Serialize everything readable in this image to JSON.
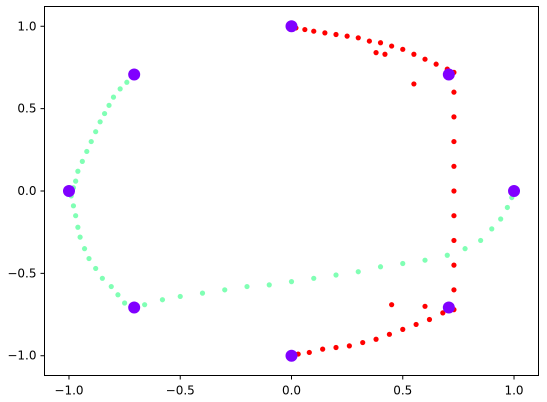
{
  "chart_data": {
    "type": "scatter",
    "title": "",
    "xlabel": "",
    "ylabel": "",
    "xlim": [
      -1.11,
      1.11
    ],
    "ylim": [
      -1.12,
      1.12
    ],
    "xticks": [
      {
        "value": -1.0,
        "label": "−1.0"
      },
      {
        "value": -0.5,
        "label": "−0.5"
      },
      {
        "value": 0.0,
        "label": "0.0"
      },
      {
        "value": 0.5,
        "label": "0.5"
      },
      {
        "value": 1.0,
        "label": "1.0"
      }
    ],
    "yticks": [
      {
        "value": 1.0,
        "label": "1.0"
      },
      {
        "value": 0.5,
        "label": "0.5"
      },
      {
        "value": 0.0,
        "label": "0.0"
      },
      {
        "value": -0.5,
        "label": "−0.5"
      },
      {
        "value": -1.0,
        "label": "−1.0"
      }
    ],
    "grid": false,
    "legend": "none",
    "series": [
      {
        "color": "#80ffb4",
        "points": [
          [
            -0.71,
            0.7
          ],
          [
            -0.74,
            0.66
          ],
          [
            -0.77,
            0.62
          ],
          [
            -0.8,
            0.57
          ],
          [
            -0.82,
            0.52
          ],
          [
            -0.84,
            0.47
          ],
          [
            -0.86,
            0.42
          ],
          [
            -0.88,
            0.36
          ],
          [
            -0.9,
            0.3
          ],
          [
            -0.92,
            0.24
          ],
          [
            -0.94,
            0.18
          ],
          [
            -0.96,
            0.12
          ],
          [
            -0.97,
            0.06
          ],
          [
            -0.98,
            0.02
          ],
          [
            -0.99,
            -0.03
          ],
          [
            -0.98,
            -0.09
          ],
          [
            -0.97,
            -0.15
          ],
          [
            -0.96,
            -0.22
          ],
          [
            -0.95,
            -0.28
          ],
          [
            -0.93,
            -0.35
          ],
          [
            -0.91,
            -0.41
          ],
          [
            -0.88,
            -0.47
          ],
          [
            -0.85,
            -0.53
          ],
          [
            -0.81,
            -0.58
          ],
          [
            -0.78,
            -0.63
          ],
          [
            -0.75,
            -0.68
          ],
          [
            -0.72,
            -0.71
          ],
          [
            -0.66,
            -0.69
          ],
          [
            -0.58,
            -0.66
          ],
          [
            -0.5,
            -0.64
          ],
          [
            -0.4,
            -0.62
          ],
          [
            -0.3,
            -0.6
          ],
          [
            -0.2,
            -0.58
          ],
          [
            -0.1,
            -0.57
          ],
          [
            0.0,
            -0.55
          ],
          [
            0.1,
            -0.53
          ],
          [
            0.2,
            -0.51
          ],
          [
            0.3,
            -0.49
          ],
          [
            0.4,
            -0.46
          ],
          [
            0.5,
            -0.44
          ],
          [
            0.6,
            -0.42
          ],
          [
            0.7,
            -0.39
          ],
          [
            0.78,
            -0.35
          ],
          [
            0.85,
            -0.3
          ],
          [
            0.9,
            -0.23
          ],
          [
            0.94,
            -0.17
          ],
          [
            0.97,
            -0.1
          ],
          [
            0.99,
            -0.04
          ],
          [
            1.0,
            0.0
          ]
        ]
      },
      {
        "color": "#ff0000",
        "points": [
          [
            -0.01,
            1.0
          ],
          [
            0.02,
            0.99
          ],
          [
            0.06,
            0.98
          ],
          [
            0.1,
            0.97
          ],
          [
            0.15,
            0.96
          ],
          [
            0.2,
            0.95
          ],
          [
            0.25,
            0.94
          ],
          [
            0.3,
            0.93
          ],
          [
            0.35,
            0.91
          ],
          [
            0.4,
            0.9
          ],
          [
            0.45,
            0.88
          ],
          [
            0.5,
            0.86
          ],
          [
            0.55,
            0.83
          ],
          [
            0.6,
            0.8
          ],
          [
            0.65,
            0.77
          ],
          [
            0.7,
            0.74
          ],
          [
            0.73,
            0.72
          ],
          [
            0.73,
            0.6
          ],
          [
            0.73,
            0.45
          ],
          [
            0.73,
            0.3
          ],
          [
            0.73,
            0.15
          ],
          [
            0.73,
            0.0
          ],
          [
            0.73,
            -0.15
          ],
          [
            0.73,
            -0.3
          ],
          [
            0.73,
            -0.45
          ],
          [
            0.73,
            -0.6
          ],
          [
            0.73,
            -0.72
          ],
          [
            0.68,
            -0.74
          ],
          [
            0.62,
            -0.78
          ],
          [
            0.56,
            -0.81
          ],
          [
            0.5,
            -0.84
          ],
          [
            0.44,
            -0.87
          ],
          [
            0.38,
            -0.9
          ],
          [
            0.32,
            -0.92
          ],
          [
            0.26,
            -0.94
          ],
          [
            0.2,
            -0.95
          ],
          [
            0.14,
            -0.96
          ],
          [
            0.08,
            -0.98
          ],
          [
            0.03,
            -0.99
          ],
          [
            -0.01,
            -1.0
          ],
          [
            0.38,
            0.84
          ],
          [
            0.42,
            0.83
          ],
          [
            0.55,
            0.65
          ],
          [
            0.45,
            -0.69
          ],
          [
            0.6,
            -0.7
          ]
        ]
      },
      {
        "color": "#8000ff",
        "points": [
          [
            0.0,
            1.0
          ],
          [
            0.707,
            0.707
          ],
          [
            1.0,
            0.0
          ],
          [
            0.707,
            -0.707
          ],
          [
            0.0,
            -1.0
          ],
          [
            -0.707,
            -0.707
          ],
          [
            -1.0,
            0.0
          ],
          [
            -0.707,
            0.707
          ]
        ]
      }
    ]
  }
}
